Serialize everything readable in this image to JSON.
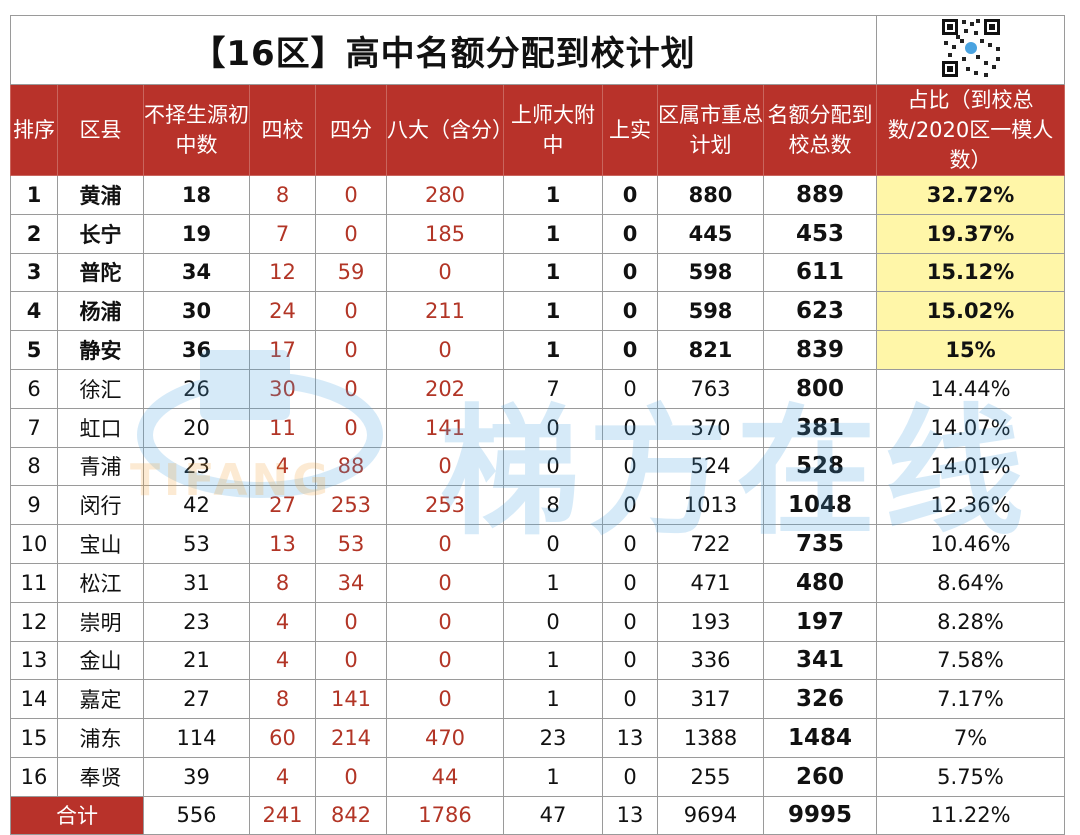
{
  "title": "【16区】高中名额分配到校计划",
  "qr_icon": "qr-code-icon",
  "watermark": {
    "text": "梯方在线",
    "sub": "TIFANG"
  },
  "headers": [
    "排序",
    "区县",
    "不择生源初中数",
    "四校",
    "四分",
    "八大（含分）",
    "上师大附中",
    "上实",
    "区属市重总计划",
    "名额分配到校总数",
    "占比（到校总数/2020区一模人数）"
  ],
  "rows": [
    [
      "1",
      "黄浦",
      "18",
      "8",
      "0",
      "280",
      "1",
      "0",
      "880",
      "889",
      "32.72%"
    ],
    [
      "2",
      "长宁",
      "19",
      "7",
      "0",
      "185",
      "1",
      "0",
      "445",
      "453",
      "19.37%"
    ],
    [
      "3",
      "普陀",
      "34",
      "12",
      "59",
      "0",
      "1",
      "0",
      "598",
      "611",
      "15.12%"
    ],
    [
      "4",
      "杨浦",
      "30",
      "24",
      "0",
      "211",
      "1",
      "0",
      "598",
      "623",
      "15.02%"
    ],
    [
      "5",
      "静安",
      "36",
      "17",
      "0",
      "0",
      "1",
      "0",
      "821",
      "839",
      "15%"
    ],
    [
      "6",
      "徐汇",
      "26",
      "30",
      "0",
      "202",
      "7",
      "0",
      "763",
      "800",
      "14.44%"
    ],
    [
      "7",
      "虹口",
      "20",
      "11",
      "0",
      "141",
      "0",
      "0",
      "370",
      "381",
      "14.07%"
    ],
    [
      "8",
      "青浦",
      "23",
      "4",
      "88",
      "0",
      "0",
      "0",
      "524",
      "528",
      "14.01%"
    ],
    [
      "9",
      "闵行",
      "42",
      "27",
      "253",
      "253",
      "8",
      "0",
      "1013",
      "1048",
      "12.36%"
    ],
    [
      "10",
      "宝山",
      "53",
      "13",
      "53",
      "0",
      "0",
      "0",
      "722",
      "735",
      "10.46%"
    ],
    [
      "11",
      "松江",
      "31",
      "8",
      "34",
      "0",
      "1",
      "0",
      "471",
      "480",
      "8.64%"
    ],
    [
      "12",
      "崇明",
      "23",
      "4",
      "0",
      "0",
      "0",
      "0",
      "193",
      "197",
      "8.28%"
    ],
    [
      "13",
      "金山",
      "21",
      "4",
      "0",
      "0",
      "1",
      "0",
      "336",
      "341",
      "7.58%"
    ],
    [
      "14",
      "嘉定",
      "27",
      "8",
      "141",
      "0",
      "1",
      "0",
      "317",
      "326",
      "7.17%"
    ],
    [
      "15",
      "浦东",
      "114",
      "60",
      "214",
      "470",
      "23",
      "13",
      "1388",
      "1484",
      "7%"
    ],
    [
      "16",
      "奉贤",
      "39",
      "4",
      "0",
      "44",
      "1",
      "0",
      "255",
      "260",
      "5.75%"
    ]
  ],
  "summary": [
    "合计",
    "556",
    "241",
    "842",
    "1786",
    "47",
    "13",
    "9694",
    "9995",
    "11.22%"
  ],
  "colors": {
    "header_bg": "#b8322a",
    "highlight": "#fff6a8",
    "red_text": "#b23526"
  }
}
